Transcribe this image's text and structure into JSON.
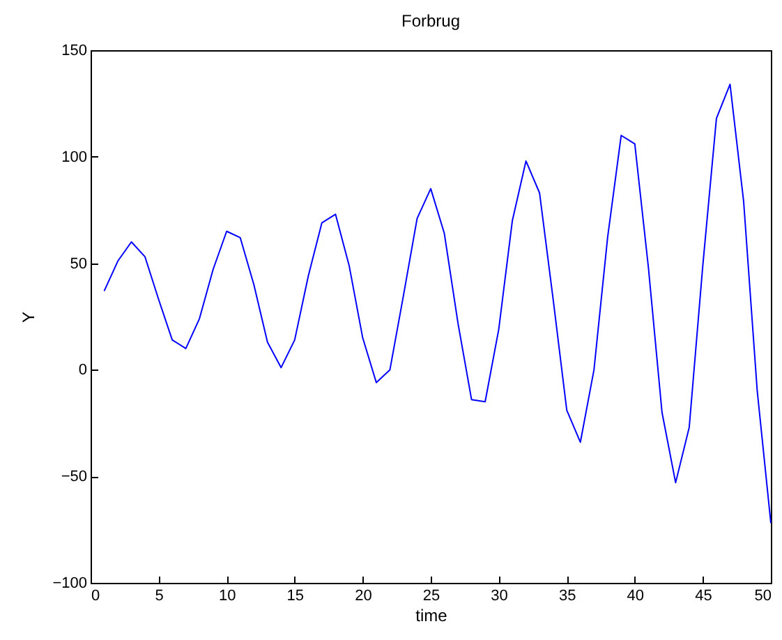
{
  "chart_data": {
    "type": "line",
    "title": "Forbrug",
    "xlabel": "time",
    "ylabel": "Y",
    "x": [
      1,
      2,
      3,
      4,
      5,
      6,
      7,
      8,
      9,
      10,
      11,
      12,
      13,
      14,
      15,
      16,
      17,
      18,
      19,
      20,
      21,
      22,
      23,
      24,
      25,
      26,
      27,
      28,
      29,
      30,
      31,
      32,
      33,
      34,
      35,
      36,
      37,
      38,
      39,
      40,
      41,
      42,
      43,
      44,
      45,
      46,
      47,
      48,
      49,
      50
    ],
    "series": [
      {
        "color": "#0000ff",
        "values": [
          37,
          51,
          60,
          53,
          33,
          14,
          10,
          24,
          47,
          65,
          62,
          40,
          13,
          1,
          14,
          44,
          69,
          73,
          49,
          15,
          -6,
          0,
          35,
          71,
          85,
          64,
          22,
          -14,
          -15,
          19,
          70,
          98,
          83,
          33,
          -19,
          -34,
          0,
          62,
          110,
          106,
          48,
          -20,
          -53,
          -27,
          49,
          118,
          134,
          79,
          -10,
          -72
        ]
      }
    ],
    "xlim": [
      0,
      50
    ],
    "xticks": [
      0,
      5,
      10,
      15,
      20,
      25,
      30,
      35,
      40,
      45,
      50
    ],
    "ylim": [
      -100,
      150
    ],
    "yticks": [
      -100,
      -50,
      0,
      50,
      100,
      150
    ],
    "grid": false,
    "marker": "none",
    "line_style": "solid"
  }
}
